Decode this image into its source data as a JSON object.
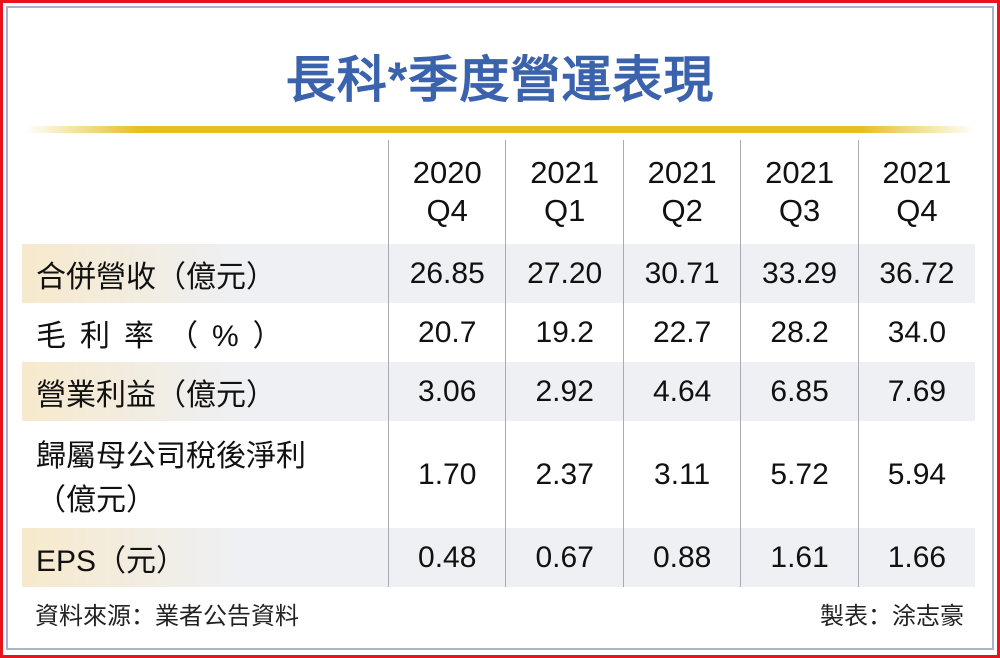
{
  "title": "長科*季度營運表現",
  "chart_data": {
    "type": "table",
    "title": "長科*季度營運表現",
    "columns": [
      {
        "year": "2020",
        "quarter": "Q4"
      },
      {
        "year": "2021",
        "quarter": "Q1"
      },
      {
        "year": "2021",
        "quarter": "Q2"
      },
      {
        "year": "2021",
        "quarter": "Q3"
      },
      {
        "year": "2021",
        "quarter": "Q4"
      }
    ],
    "rows": [
      {
        "label": "合併營收（億元）",
        "values": [
          "26.85",
          "27.20",
          "30.71",
          "33.29",
          "36.72"
        ]
      },
      {
        "label": "毛利率（%）",
        "values": [
          "20.7",
          "19.2",
          "22.7",
          "28.2",
          "34.0"
        ]
      },
      {
        "label": "營業利益（億元）",
        "values": [
          "3.06",
          "2.92",
          "4.64",
          "6.85",
          "7.69"
        ]
      },
      {
        "label": "歸屬母公司稅後淨利",
        "label2": "（億元）",
        "values": [
          "1.70",
          "2.37",
          "3.11",
          "5.72",
          "5.94"
        ]
      },
      {
        "label": "EPS（元）",
        "values": [
          "0.48",
          "0.67",
          "0.88",
          "1.61",
          "1.66"
        ]
      }
    ]
  },
  "footer": {
    "source": "資料來源：業者公告資料",
    "author": "製表：涂志豪"
  },
  "colors": {
    "title": "#3a62ad",
    "border": "#e8141c",
    "rule": "#e4c024"
  }
}
